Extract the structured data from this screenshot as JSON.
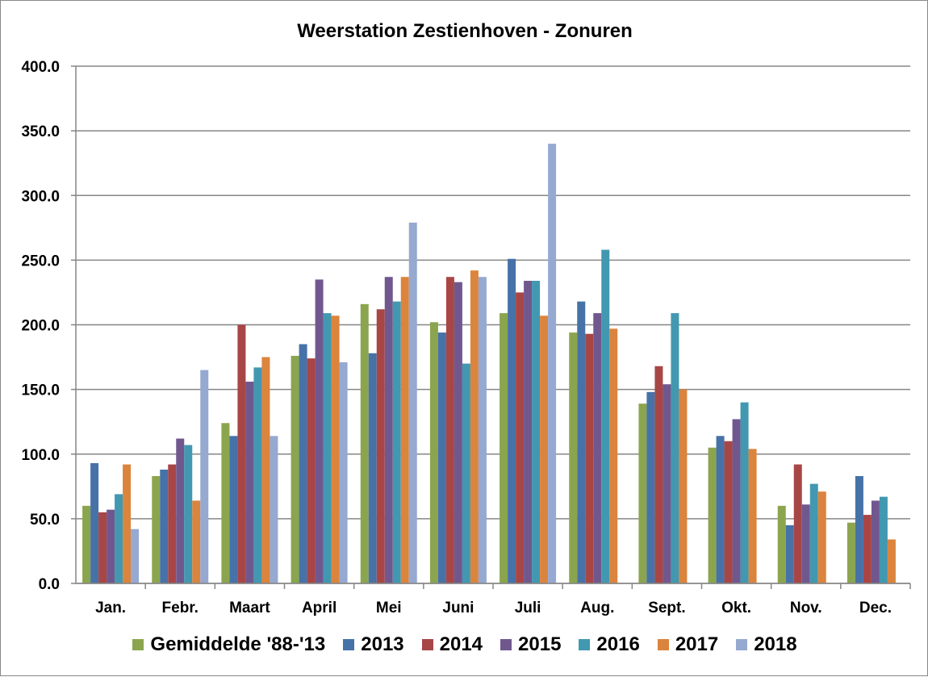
{
  "chart_data": {
    "type": "bar",
    "title": "Weerstation Zestienhoven - Zonuren",
    "xlabel": "",
    "ylabel": "",
    "ylim": [
      0,
      400
    ],
    "yticks": [
      "0.0",
      "50.0",
      "100.0",
      "150.0",
      "200.0",
      "250.0",
      "300.0",
      "350.0",
      "400.0"
    ],
    "grid": true,
    "legend_position": "bottom",
    "categories": [
      "Jan.",
      "Febr.",
      "Maart",
      "April",
      "Mei",
      "Juni",
      "Juli",
      "Aug.",
      "Sept.",
      "Okt.",
      "Nov.",
      "Dec."
    ],
    "series": [
      {
        "name": "Gemiddelde '88-'13",
        "color": "#8BA54E",
        "values": [
          60,
          83,
          124,
          176,
          216,
          202,
          209,
          194,
          139,
          105,
          60,
          47
        ]
      },
      {
        "name": "2013",
        "color": "#4672A8",
        "values": [
          93,
          88,
          114,
          185,
          178,
          194,
          251,
          218,
          148,
          114,
          45,
          83
        ]
      },
      {
        "name": "2014",
        "color": "#A84646",
        "values": [
          55,
          92,
          200,
          174,
          212,
          237,
          225,
          193,
          168,
          110,
          92,
          53
        ]
      },
      {
        "name": "2015",
        "color": "#70588F",
        "values": [
          57,
          112,
          156,
          235,
          237,
          233,
          234,
          209,
          154,
          127,
          61,
          64
        ]
      },
      {
        "name": "2016",
        "color": "#4298B0",
        "values": [
          69,
          107,
          167,
          209,
          218,
          170,
          234,
          258,
          209,
          140,
          77,
          67
        ]
      },
      {
        "name": "2017",
        "color": "#DB843D",
        "values": [
          92,
          64,
          175,
          207,
          237,
          242,
          207,
          197,
          150,
          104,
          71,
          34
        ]
      },
      {
        "name": "2018",
        "color": "#95A9D1",
        "values": [
          42,
          165,
          114,
          171,
          279,
          237,
          340,
          null,
          null,
          null,
          null,
          null
        ]
      }
    ]
  }
}
